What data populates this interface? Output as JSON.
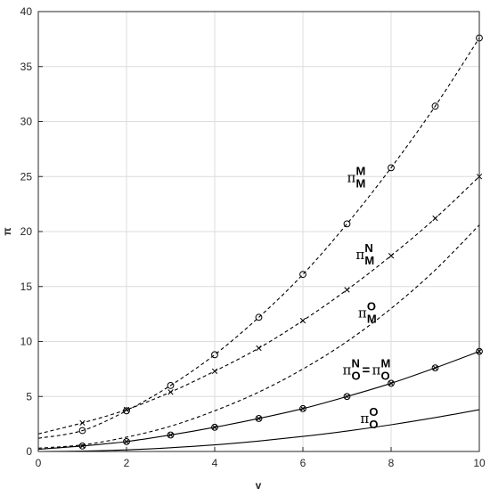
{
  "chart_data": {
    "type": "line",
    "xlabel": "v",
    "ylabel": "π",
    "xlim": [
      0,
      10
    ],
    "ylim": [
      0,
      40
    ],
    "xticks": [
      0,
      2,
      4,
      6,
      8,
      10
    ],
    "yticks": [
      0,
      5,
      10,
      15,
      20,
      25,
      30,
      35,
      40
    ],
    "grid": true,
    "series": [
      {
        "name": "π_M^M",
        "style": "dashed",
        "marker": "o",
        "curve": {
          "v": [
            0,
            1,
            2,
            3,
            4,
            5,
            6,
            7,
            8,
            9,
            10
          ],
          "y": [
            1.2,
            1.9,
            3.7,
            6.0,
            8.8,
            12.2,
            16.1,
            20.7,
            25.8,
            31.4,
            37.6
          ]
        },
        "markers": {
          "v": [
            1,
            2,
            3,
            4,
            5,
            6,
            7,
            8,
            9,
            10
          ],
          "y": [
            1.9,
            3.7,
            6.0,
            8.8,
            12.2,
            16.1,
            20.7,
            25.8,
            31.4,
            37.6
          ]
        }
      },
      {
        "name": "π_M^N",
        "style": "dashed",
        "marker": "x",
        "curve": {
          "v": [
            0,
            1,
            2,
            3,
            4,
            5,
            6,
            7,
            8,
            9,
            10
          ],
          "y": [
            1.6,
            2.6,
            3.8,
            5.4,
            7.3,
            9.4,
            11.9,
            14.7,
            17.8,
            21.2,
            25.0
          ]
        },
        "markers": {
          "v": [
            1,
            2,
            3,
            4,
            5,
            6,
            7,
            8,
            9,
            10
          ],
          "y": [
            2.6,
            3.8,
            5.4,
            7.3,
            9.4,
            11.9,
            14.7,
            17.8,
            21.2,
            25.0
          ]
        }
      },
      {
        "name": "π_M^O",
        "style": "dashed",
        "marker": "none",
        "curve": {
          "v": [
            0,
            1,
            2,
            3,
            4,
            5,
            6,
            7,
            8,
            9,
            10
          ],
          "y": [
            0.3,
            0.6,
            1.3,
            2.3,
            3.7,
            5.4,
            7.5,
            10.0,
            13.0,
            16.5,
            20.6
          ]
        }
      },
      {
        "name": "π_O^N=π_O^M",
        "style": "solid",
        "marker": "o+x",
        "curve": {
          "v": [
            0,
            1,
            2,
            3,
            4,
            5,
            6,
            7,
            8,
            9,
            10
          ],
          "y": [
            0.2,
            0.5,
            0.9,
            1.5,
            2.2,
            3.0,
            3.9,
            5.0,
            6.2,
            7.6,
            9.1
          ]
        },
        "markers": {
          "v": [
            1,
            2,
            3,
            4,
            5,
            6,
            7,
            8,
            9,
            10
          ],
          "y": [
            0.5,
            0.9,
            1.5,
            2.2,
            3.0,
            3.9,
            5.0,
            6.2,
            7.6,
            9.1
          ]
        }
      },
      {
        "name": "π_O^O",
        "style": "solid",
        "marker": "none",
        "curve": {
          "v": [
            0,
            1,
            2,
            3,
            4,
            5,
            6,
            7,
            8,
            9,
            10
          ],
          "y": [
            0.0,
            0.04,
            0.15,
            0.34,
            0.6,
            0.95,
            1.37,
            1.86,
            2.43,
            3.08,
            3.8
          ]
        }
      }
    ],
    "annotations": [
      {
        "base": "π",
        "sup": "M",
        "sub": "M",
        "v": 7.0,
        "y": 24.5
      },
      {
        "base": "π",
        "sup": "N",
        "sub": "M",
        "v": 7.2,
        "y": 17.5
      },
      {
        "base": "π",
        "sup": "O",
        "sub": "M",
        "v": 7.25,
        "y": 12.2
      },
      {
        "base": "π",
        "sup": "N",
        "sub": "O",
        "eq": "=",
        "base2": "π",
        "sup2": "M",
        "sub2": "O",
        "v": 6.9,
        "y": 7.0
      },
      {
        "base": "π",
        "sup": "O",
        "sub": "O",
        "v": 7.3,
        "y": 2.6
      }
    ]
  }
}
